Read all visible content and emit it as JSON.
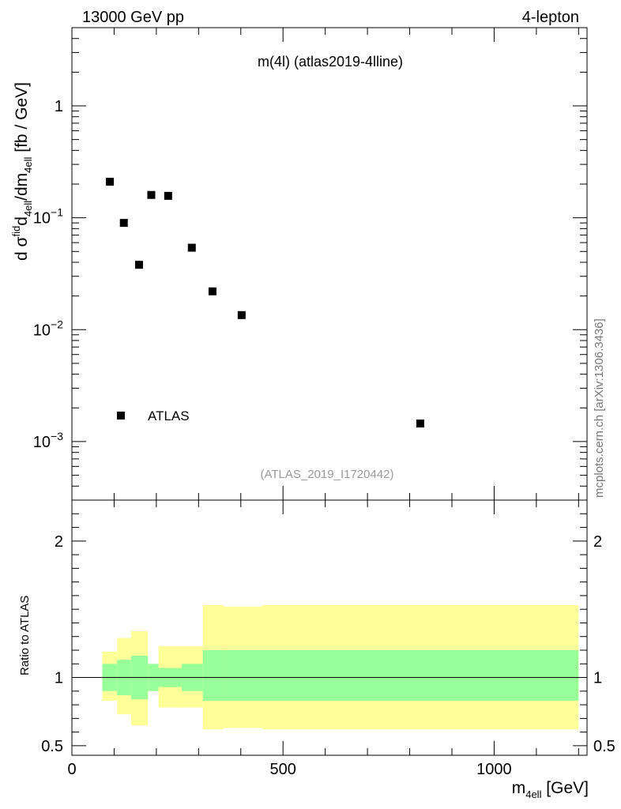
{
  "header": {
    "left": "13000 GeV pp",
    "right": "4-lepton"
  },
  "side_label": "mcplots.cern.ch [arXiv:1306.3436]",
  "chart_data": [
    {
      "type": "scatter",
      "title": "m(4l) (atlas2019-4lline)",
      "watermark": "(ATLAS_2019_I1720442)",
      "ylabel": "d σ^fid_4ell/dm_4ell [fb / GeV]",
      "y_scale": "log",
      "xlim": [
        0,
        1220
      ],
      "ylim": [
        0.0003,
        5
      ],
      "y_ticks": [
        {
          "value": 0.001,
          "base": "10",
          "exp": "−3"
        },
        {
          "value": 0.01,
          "base": "10",
          "exp": "−2"
        },
        {
          "value": 0.1,
          "base": "10",
          "exp": "−1"
        },
        {
          "value": 1,
          "base": "1",
          "exp": ""
        }
      ],
      "legend": {
        "position": "bottom-left",
        "entries": [
          "ATLAS"
        ]
      },
      "series": [
        {
          "name": "ATLAS",
          "color": "#000000",
          "marker": "square",
          "points": [
            {
              "x": 90,
              "y": 0.21
            },
            {
              "x": 123,
              "y": 0.09
            },
            {
              "x": 159,
              "y": 0.038
            },
            {
              "x": 188,
              "y": 0.16
            },
            {
              "x": 228,
              "y": 0.157
            },
            {
              "x": 284,
              "y": 0.054
            },
            {
              "x": 333,
              "y": 0.022
            },
            {
              "x": 402,
              "y": 0.0135
            },
            {
              "x": 825,
              "y": 0.00145
            }
          ]
        }
      ]
    },
    {
      "type": "area",
      "ylabel": "Ratio to ATLAS",
      "xlabel": "m_4ell [GeV]",
      "xlim": [
        0,
        1220
      ],
      "ylim": [
        0.43,
        2.3
      ],
      "x_ticks": [
        0,
        500,
        1000
      ],
      "y_ticks": [
        0.5,
        1,
        2
      ],
      "reference_line": 1,
      "colors": {
        "inner_band": "#99ff99",
        "outer_band": "#ffff99"
      },
      "bins": [
        {
          "x0": 72,
          "x1": 107,
          "inner": [
            0.9,
            1.1
          ],
          "outer": [
            0.83,
            1.19
          ]
        },
        {
          "x0": 107,
          "x1": 140,
          "inner": [
            0.87,
            1.13
          ],
          "outer": [
            0.73,
            1.29
          ]
        },
        {
          "x0": 140,
          "x1": 180,
          "inner": [
            0.84,
            1.16
          ],
          "outer": [
            0.65,
            1.34
          ]
        },
        {
          "x0": 180,
          "x1": 205,
          "inner": [
            0.9,
            1.1
          ],
          "outer": [
            0.93,
            1.09
          ]
        },
        {
          "x0": 205,
          "x1": 260,
          "inner": [
            0.93,
            1.07
          ],
          "outer": [
            0.78,
            1.23
          ]
        },
        {
          "x0": 260,
          "x1": 310,
          "inner": [
            0.9,
            1.1
          ],
          "outer": [
            0.78,
            1.23
          ]
        },
        {
          "x0": 310,
          "x1": 360,
          "inner": [
            0.83,
            1.2
          ],
          "outer": [
            0.62,
            1.53
          ]
        },
        {
          "x0": 360,
          "x1": 450,
          "inner": [
            0.83,
            1.2
          ],
          "outer": [
            0.63,
            1.52
          ]
        },
        {
          "x0": 450,
          "x1": 1200,
          "inner": [
            0.83,
            1.2
          ],
          "outer": [
            0.62,
            1.53
          ]
        }
      ]
    }
  ]
}
